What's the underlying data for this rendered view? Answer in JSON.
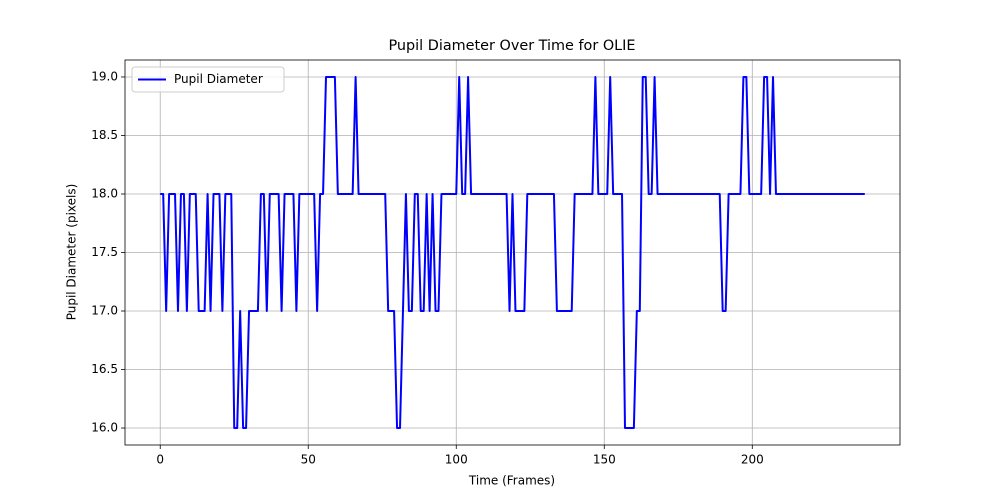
{
  "chart_data": {
    "type": "line",
    "title": "Pupil Diameter Over Time for OLIE",
    "xlabel": "Time (Frames)",
    "ylabel": "Pupil Diameter (pixels)",
    "x": [
      0,
      1,
      2,
      3,
      4,
      5,
      6,
      7,
      8,
      9,
      10,
      11,
      12,
      13,
      14,
      15,
      16,
      17,
      18,
      19,
      20,
      21,
      22,
      23,
      24,
      25,
      26,
      27,
      28,
      29,
      30,
      31,
      32,
      33,
      34,
      35,
      36,
      37,
      38,
      39,
      40,
      41,
      42,
      43,
      44,
      45,
      46,
      47,
      48,
      49,
      50,
      51,
      52,
      53,
      54,
      55,
      56,
      57,
      58,
      59,
      60,
      61,
      62,
      63,
      64,
      65,
      66,
      67,
      68,
      69,
      70,
      71,
      72,
      73,
      74,
      75,
      76,
      77,
      78,
      79,
      80,
      81,
      82,
      83,
      84,
      85,
      86,
      87,
      88,
      89,
      90,
      91,
      92,
      93,
      94,
      95,
      96,
      97,
      98,
      99,
      100,
      101,
      102,
      103,
      104,
      105,
      106,
      107,
      108,
      109,
      110,
      111,
      112,
      113,
      114,
      115,
      116,
      117,
      118,
      119,
      120,
      121,
      122,
      123,
      124,
      125,
      126,
      127,
      128,
      129,
      130,
      131,
      132,
      133,
      134,
      135,
      136,
      137,
      138,
      139,
      140,
      141,
      142,
      143,
      144,
      145,
      146,
      147,
      148,
      149,
      150,
      151,
      152,
      153,
      154,
      155,
      156,
      157,
      158,
      159,
      160,
      161,
      162,
      163,
      164,
      165,
      166,
      167,
      168,
      169,
      170,
      171,
      172,
      173,
      174,
      175,
      176,
      177,
      178,
      179,
      180,
      181,
      182,
      183,
      184,
      185,
      186,
      187,
      188,
      189,
      190,
      191,
      192,
      193,
      194,
      195,
      196,
      197,
      198,
      199,
      200,
      201,
      202,
      203,
      204,
      205,
      206,
      207,
      208,
      209,
      210,
      211,
      212,
      213,
      214,
      215,
      216,
      217,
      218,
      219,
      220,
      221,
      222,
      223,
      224,
      225,
      226,
      227,
      228,
      229,
      230,
      231,
      232,
      233,
      234,
      235,
      236,
      237,
      238
    ],
    "series": [
      {
        "name": "Pupil Diameter",
        "color": "#0000ff",
        "values": [
          18,
          18,
          17,
          18,
          18,
          18,
          17,
          18,
          18,
          17,
          18,
          18,
          18,
          17,
          17,
          17,
          18,
          17,
          18,
          18,
          18,
          17,
          18,
          18,
          18,
          16,
          16,
          17,
          16,
          16,
          17,
          17,
          17,
          17,
          18,
          18,
          17,
          18,
          18,
          18,
          18,
          17,
          18,
          18,
          18,
          18,
          17,
          18,
          18,
          18,
          18,
          18,
          18,
          17,
          18,
          18,
          19,
          19,
          19,
          19,
          18,
          18,
          18,
          18,
          18,
          18,
          19,
          18,
          18,
          18,
          18,
          18,
          18,
          18,
          18,
          18,
          18,
          17,
          17,
          17,
          16,
          16,
          17,
          18,
          17,
          17,
          18,
          18,
          17,
          17,
          18,
          17,
          18,
          17,
          17,
          18,
          18,
          18,
          18,
          18,
          18,
          19,
          18,
          18,
          19,
          18,
          18,
          18,
          18,
          18,
          18,
          18,
          18,
          18,
          18,
          18,
          18,
          18,
          17,
          18,
          17,
          17,
          17,
          17,
          18,
          18,
          18,
          18,
          18,
          18,
          18,
          18,
          18,
          18,
          17,
          17,
          17,
          17,
          17,
          17,
          18,
          18,
          18,
          18,
          18,
          18,
          18,
          19,
          18,
          18,
          18,
          18,
          19,
          18,
          18,
          18,
          18,
          16,
          16,
          16,
          16,
          17,
          17,
          19,
          19,
          18,
          18,
          19,
          18,
          18,
          18,
          18,
          18,
          18,
          18,
          18,
          18,
          18,
          18,
          18,
          18,
          18,
          18,
          18,
          18,
          18,
          18,
          18,
          18,
          18,
          17,
          17,
          18,
          18,
          18,
          18,
          18,
          19,
          19,
          18,
          18,
          18,
          18,
          18,
          19,
          19,
          18,
          19,
          18,
          18,
          18,
          18,
          18,
          18,
          18,
          18,
          18,
          18,
          18,
          18,
          18,
          18,
          18,
          18,
          18,
          18,
          18,
          18,
          18,
          18,
          18,
          18,
          18,
          18,
          18,
          18,
          18,
          18,
          18
        ]
      }
    ],
    "xlim": [
      -11.9,
      249.9
    ],
    "xticks": [
      0,
      50,
      100,
      150,
      200
    ],
    "ylim": [
      15.855,
      19.145
    ],
    "yticks": [
      {
        "value": 16,
        "label": "16.0"
      },
      {
        "value": 16.5,
        "label": "16.5"
      },
      {
        "value": 17,
        "label": "17.0"
      },
      {
        "value": 17.5,
        "label": "17.5"
      },
      {
        "value": 18,
        "label": "18.0"
      },
      {
        "value": 18.5,
        "label": "18.5"
      },
      {
        "value": 19,
        "label": "19.0"
      }
    ],
    "grid": true,
    "legend": "upper-left"
  }
}
